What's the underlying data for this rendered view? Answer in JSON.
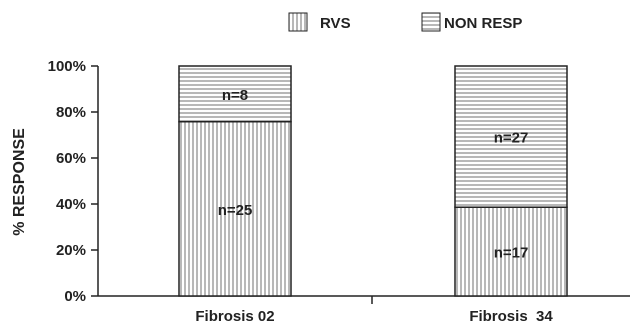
{
  "chart_data": {
    "type": "bar",
    "stacked": true,
    "normalized_percent": true,
    "title": "",
    "xlabel": "",
    "ylabel": "% RESPONSE",
    "ylim": [
      0,
      100
    ],
    "yticks": [
      "0%",
      "20%",
      "40%",
      "60%",
      "80%",
      "100%"
    ],
    "categories": [
      "Fibrosis 02",
      "Fibrosis  34"
    ],
    "series": [
      {
        "name": "RVS",
        "pattern": "vertical-lines",
        "values": [
          75.8,
          38.6
        ],
        "labels": [
          "n=25",
          "n=17"
        ]
      },
      {
        "name": "NON RESP",
        "pattern": "horizontal-lines",
        "values": [
          24.2,
          61.4
        ],
        "labels": [
          "n=8",
          "n=27"
        ]
      }
    ],
    "legend_position": "top",
    "grid": false,
    "colors": {
      "stroke": "#222222",
      "fill": "#ffffff",
      "hatch": "#8a8a8a"
    }
  }
}
